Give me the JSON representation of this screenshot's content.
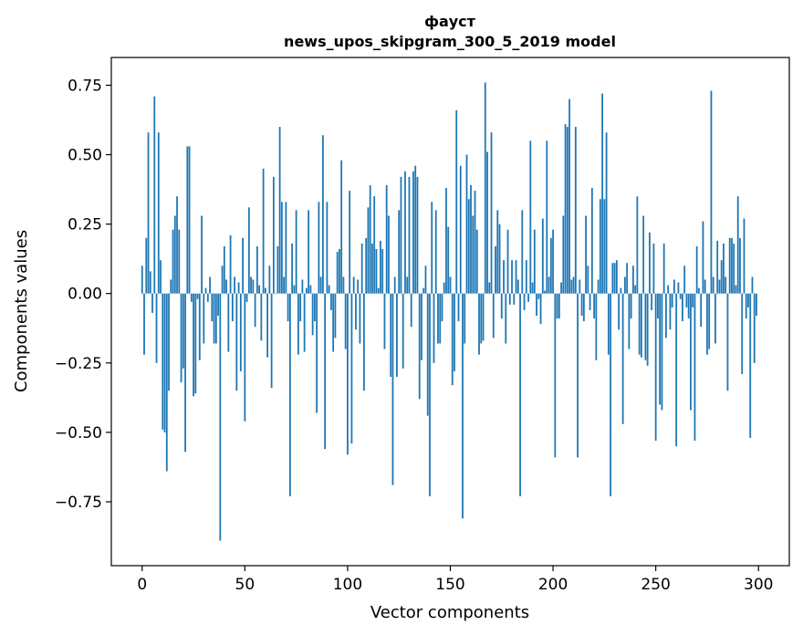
{
  "chart_data": {
    "type": "bar",
    "title_lines": [
      "фауст",
      "news_upos_skipgram_300_5_2019 model"
    ],
    "xlabel": "Vector components",
    "ylabel": "Components values",
    "xlim": [
      -15,
      315
    ],
    "ylim": [
      -0.98,
      0.85
    ],
    "xticks": [
      0,
      50,
      100,
      150,
      200,
      250,
      300
    ],
    "yticks": [
      -0.75,
      -0.5,
      -0.25,
      0.0,
      0.25,
      0.5,
      0.75
    ],
    "ytick_labels": [
      "−0.75",
      "−0.50",
      "−0.25",
      "0.00",
      "0.25",
      "0.50",
      "0.75"
    ],
    "bar_color": "#1f77b4",
    "grid": false,
    "legend": "none",
    "x_start": 0,
    "values": [
      0.1,
      -0.22,
      0.2,
      0.58,
      0.08,
      -0.07,
      0.71,
      -0.25,
      0.58,
      0.12,
      -0.49,
      -0.5,
      -0.64,
      -0.35,
      0.05,
      0.23,
      0.28,
      0.35,
      0.23,
      -0.32,
      -0.27,
      -0.57,
      0.53,
      0.53,
      -0.03,
      -0.37,
      -0.36,
      -0.02,
      -0.24,
      0.28,
      -0.18,
      0.02,
      -0.03,
      0.06,
      -0.1,
      -0.18,
      -0.18,
      -0.08,
      -0.89,
      0.1,
      0.17,
      0.05,
      -0.21,
      0.21,
      -0.1,
      0.06,
      -0.35,
      0.04,
      -0.28,
      0.2,
      -0.46,
      -0.03,
      0.31,
      0.06,
      0.05,
      -0.12,
      0.17,
      0.03,
      -0.17,
      0.45,
      0.02,
      -0.23,
      0.1,
      -0.34,
      0.42,
      0.0,
      0.17,
      0.6,
      0.33,
      0.06,
      0.33,
      -0.1,
      -0.73,
      0.18,
      0.03,
      0.3,
      -0.22,
      -0.1,
      0.05,
      -0.21,
      0.02,
      0.3,
      0.03,
      -0.15,
      -0.1,
      -0.43,
      0.33,
      0.06,
      0.57,
      -0.56,
      0.33,
      0.03,
      -0.06,
      -0.21,
      -0.16,
      0.15,
      0.16,
      0.48,
      0.06,
      -0.2,
      -0.58,
      0.37,
      -0.54,
      0.06,
      -0.13,
      0.05,
      -0.18,
      0.18,
      -0.35,
      0.2,
      0.31,
      0.39,
      0.18,
      0.35,
      0.16,
      0.02,
      0.19,
      0.16,
      -0.2,
      0.39,
      0.28,
      -0.3,
      -0.69,
      0.06,
      -0.3,
      0.3,
      0.42,
      -0.27,
      0.44,
      0.06,
      0.42,
      -0.12,
      0.44,
      0.46,
      0.42,
      -0.38,
      -0.24,
      0.02,
      0.1,
      -0.44,
      -0.73,
      0.33,
      -0.25,
      0.3,
      -0.18,
      -0.18,
      -0.1,
      0.04,
      0.38,
      0.24,
      0.06,
      -0.33,
      -0.28,
      0.66,
      -0.1,
      0.46,
      -0.81,
      -0.18,
      0.5,
      0.34,
      0.39,
      0.28,
      0.37,
      0.23,
      -0.22,
      -0.18,
      -0.17,
      0.76,
      0.51,
      0.04,
      0.58,
      -0.16,
      0.17,
      0.3,
      0.25,
      -0.09,
      0.12,
      -0.18,
      0.23,
      -0.04,
      0.12,
      -0.04,
      0.12,
      0.05,
      -0.73,
      0.3,
      -0.06,
      0.12,
      -0.03,
      0.55,
      0.04,
      0.23,
      -0.08,
      -0.02,
      -0.11,
      0.27,
      0.01,
      0.55,
      0.06,
      0.2,
      0.23,
      -0.59,
      -0.09,
      -0.09,
      0.04,
      0.28,
      0.61,
      0.6,
      0.7,
      0.05,
      0.06,
      0.6,
      -0.59,
      0.05,
      -0.08,
      -0.1,
      0.28,
      0.1,
      -0.06,
      0.38,
      -0.09,
      -0.24,
      0.05,
      0.34,
      0.72,
      0.34,
      0.58,
      -0.22,
      -0.73,
      0.11,
      0.11,
      0.12,
      -0.13,
      0.02,
      -0.47,
      0.06,
      0.11,
      -0.2,
      -0.09,
      0.1,
      0.03,
      0.35,
      -0.22,
      -0.23,
      0.28,
      -0.24,
      -0.26,
      0.22,
      -0.06,
      0.18,
      -0.53,
      -0.09,
      -0.4,
      -0.42,
      0.18,
      -0.16,
      0.03,
      -0.13,
      -0.05,
      0.05,
      -0.55,
      0.04,
      -0.02,
      -0.1,
      0.1,
      -0.05,
      -0.09,
      -0.42,
      -0.05,
      -0.53,
      0.17,
      0.02,
      -0.12,
      0.26,
      0.05,
      -0.22,
      -0.2,
      0.73,
      0.06,
      -0.18,
      0.19,
      0.05,
      0.12,
      0.18,
      0.06,
      -0.35,
      0.2,
      0.2,
      0.18,
      0.03,
      0.35,
      0.2,
      -0.29,
      0.27,
      -0.09,
      -0.05,
      -0.52,
      0.06,
      -0.25,
      -0.08
    ]
  }
}
